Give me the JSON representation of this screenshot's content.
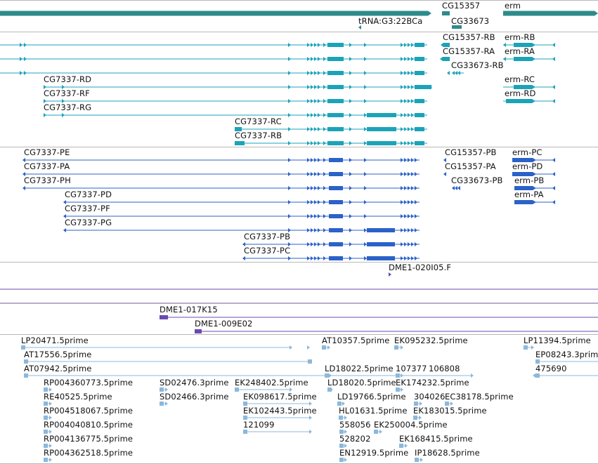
{
  "colors": {
    "gene": "#2e8b8b",
    "transcript": "#1ba3b8",
    "protein": "#2b62c8",
    "clone": "#6a4ab0",
    "est": "#8cb8dc",
    "separator": "#b8b8b8"
  },
  "gene_track": {
    "labels": [
      "CG15357",
      "erm",
      "CG33673",
      "tRNA:G3:22BCa"
    ]
  },
  "transcript_track": {
    "labels": [
      "CG15357-RB",
      "erm-RB",
      "CG15357-RA",
      "erm-RA",
      "CG33673-RB",
      "CG7337-RD",
      "erm-RC",
      "CG7337-RF",
      "erm-RD",
      "CG7337-RG",
      "CG7337-RC",
      "CG7337-RB"
    ]
  },
  "protein_track": {
    "labels": [
      "CG7337-PE",
      "CG15357-PB",
      "erm-PC",
      "CG7337-PA",
      "CG15357-PA",
      "erm-PD",
      "CG7337-PH",
      "CG33673-PB",
      "erm-PB",
      "CG7337-PD",
      "erm-PA",
      "CG7337-PF",
      "CG7337-PG",
      "CG7337-PB",
      "CG7337-PC"
    ]
  },
  "clone_track": {
    "labels": [
      "DME1-020I05.F",
      "DME1-017K15",
      "DME1-009E02"
    ]
  },
  "est_track": {
    "labels": [
      "LP20471.5prime",
      "AT10357.5prime",
      "EK095232.5prime",
      "LP11394.5prime",
      "AT17556.5prime",
      "EP08243.3prime",
      "AT07942.5prime",
      "LD18022.5prime",
      "107377",
      "106808",
      "475690",
      "RP004360773.5prime",
      "SD02476.3prime",
      "EK248402.5prime",
      "LD18020.5prime",
      "EK174232.5prime",
      "RE40525.5prime",
      "SD02466.3prime",
      "EK098617.5prime",
      "LD19766.5prime",
      "304026",
      "EC38178.5prime",
      "RP004518067.5prime",
      "EK102443.5prime",
      "HL01631.5prime",
      "EK183015.5prime",
      "RP004040810.5prime",
      "121099",
      "558056",
      "EK250004.5prime",
      "RP004136775.5prime",
      "528202",
      "EK168415.5prime",
      "RP004362518.5prime",
      "EN12919.5prime",
      "IP18628.5prime"
    ]
  }
}
